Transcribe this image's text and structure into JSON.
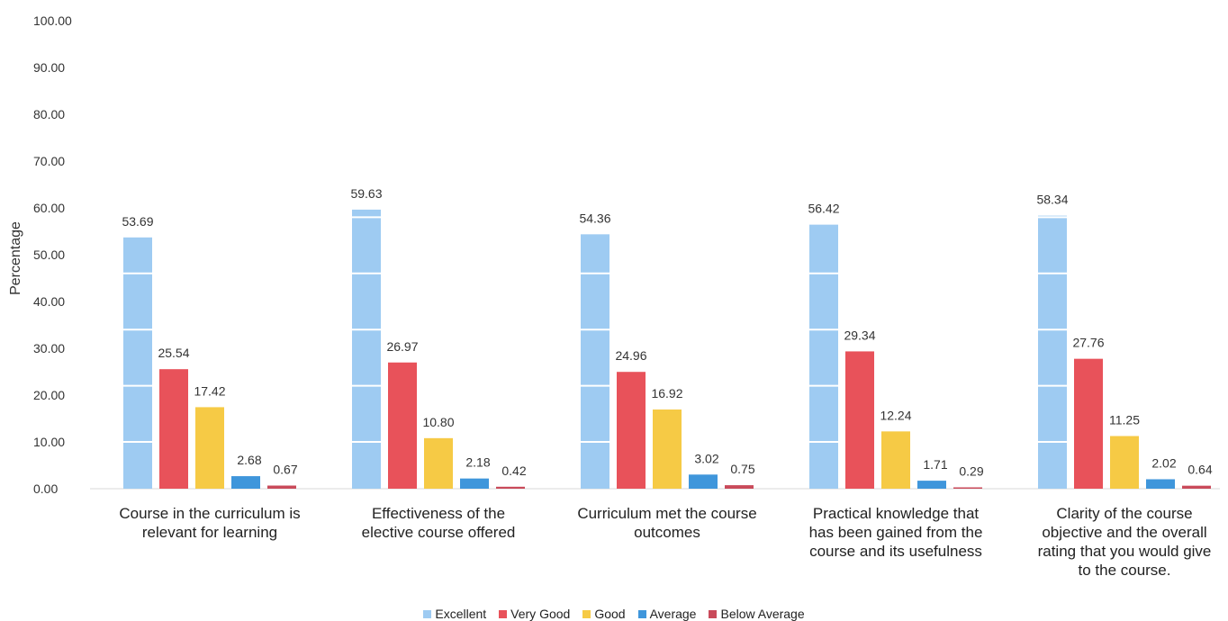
{
  "chart_data": {
    "type": "bar",
    "ylabel": "Percentage",
    "xlabel": "",
    "ylim": [
      0,
      100
    ],
    "yticks": [
      "0.00",
      "10.00",
      "20.00",
      "30.00",
      "40.00",
      "50.00",
      "60.00",
      "70.00",
      "80.00",
      "90.00",
      "100.00"
    ],
    "grid": false,
    "legend_position": "bottom",
    "categories": [
      [
        "Course in the curriculum is",
        "relevant for learning"
      ],
      [
        "Effectiveness of the",
        "elective course offered"
      ],
      [
        "Curriculum met the course",
        "outcomes"
      ],
      [
        "Practical knowledge that",
        "has been gained from the",
        "course and its usefulness"
      ],
      [
        "Clarity of the course",
        "objective and the overall",
        "rating that you would give",
        "to the course."
      ]
    ],
    "series": [
      {
        "name": "Excellent",
        "color": "#9ecbf2",
        "values": [
          53.69,
          59.63,
          54.36,
          56.42,
          58.34
        ],
        "labels": [
          "53.69",
          "59.63",
          "54.36",
          "56.42",
          "58.34"
        ]
      },
      {
        "name": "Very Good",
        "color": "#e8525a",
        "values": [
          25.54,
          26.97,
          24.96,
          29.34,
          27.76
        ],
        "labels": [
          "25.54",
          "26.97",
          "24.96",
          "29.34",
          "27.76"
        ]
      },
      {
        "name": "Good",
        "color": "#f6ca45",
        "values": [
          17.42,
          10.8,
          16.92,
          12.24,
          11.25
        ],
        "labels": [
          "17.42",
          "10.80",
          "16.92",
          "12.24",
          "11.25"
        ]
      },
      {
        "name": "Average",
        "color": "#3f96db",
        "values": [
          2.68,
          2.18,
          3.02,
          1.71,
          2.02
        ],
        "labels": [
          "2.68",
          "2.18",
          "3.02",
          "1.71",
          "2.02"
        ]
      },
      {
        "name": "Below Average",
        "color": "#c94a5a",
        "values": [
          0.67,
          0.42,
          0.75,
          0.29,
          0.64
        ],
        "labels": [
          "0.67",
          "0.42",
          "0.75",
          "0.29",
          "0.64"
        ]
      }
    ]
  }
}
